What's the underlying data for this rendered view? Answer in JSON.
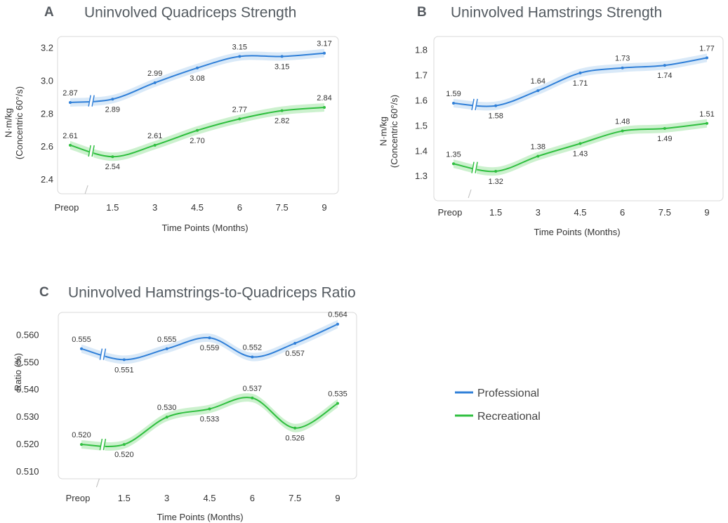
{
  "colors": {
    "professional": "#2f7fd8",
    "recreational": "#2fbf3f",
    "professional_band": "#cfe4f6",
    "recreational_band": "#bfeec2",
    "frame": "#d8d8d8"
  },
  "legend": {
    "items": [
      {
        "label": "Professional"
      },
      {
        "label": "Recreational"
      }
    ],
    "position": "right-middle"
  },
  "chart_data": [
    {
      "id": "A",
      "type": "line",
      "letter": "A",
      "title": "Uninvolved Quadriceps Strength",
      "xlabel": "Time Points (Months)",
      "ylabel": "N·m/kg (Concentric 60°/s)",
      "ylabel_lines": [
        "N·m/kg",
        "(Concentric 60°/s)"
      ],
      "categories": [
        "Preop",
        "1.5",
        "3",
        "4.5",
        "6",
        "7.5",
        "9"
      ],
      "yticks": [
        "2.4",
        "2.6",
        "2.8",
        "3.0",
        "3.2"
      ],
      "ylim": [
        2.4,
        3.22
      ],
      "grid": false,
      "axis_break": true,
      "series": [
        {
          "name": "Professional",
          "values": [
            2.87,
            2.89,
            2.99,
            3.08,
            3.15,
            3.15,
            3.17
          ],
          "labels": [
            "2.87",
            "2.89",
            "2.99",
            "3.08",
            "3.15",
            "3.15",
            "3.17"
          ]
        },
        {
          "name": "Recreational",
          "values": [
            2.61,
            2.54,
            2.61,
            2.7,
            2.77,
            2.82,
            2.84
          ],
          "labels": [
            "2.61",
            "2.54",
            "2.61",
            "2.70",
            "2.77",
            "2.82",
            "2.84"
          ]
        }
      ]
    },
    {
      "id": "B",
      "type": "line",
      "letter": "B",
      "title": "Uninvolved Hamstrings Strength",
      "xlabel": "Time Points (Months)",
      "ylabel": "N·m/kg (Concentric 60°/s)",
      "ylabel_lines": [
        "N·m/kg",
        "(Concentric 60°/s)"
      ],
      "categories": [
        "Preop",
        "1.5",
        "3",
        "4.5",
        "6",
        "7.5",
        "9"
      ],
      "yticks": [
        "1.3",
        "1.4",
        "1.5",
        "1.6",
        "1.7",
        "1.8"
      ],
      "ylim": [
        1.27,
        1.81
      ],
      "grid": false,
      "axis_break": true,
      "series": [
        {
          "name": "Professional",
          "values": [
            1.59,
            1.58,
            1.64,
            1.71,
            1.73,
            1.74,
            1.77
          ],
          "labels": [
            "1.59",
            "1.58",
            "1.64",
            "1.71",
            "1.73",
            "1.74",
            "1.77"
          ]
        },
        {
          "name": "Recreational",
          "values": [
            1.35,
            1.32,
            1.38,
            1.43,
            1.48,
            1.49,
            1.51
          ],
          "labels": [
            "1.35",
            "1.32",
            "1.38",
            "1.43",
            "1.48",
            "1.49",
            "1.51"
          ]
        }
      ]
    },
    {
      "id": "C",
      "type": "line",
      "letter": "C",
      "title": "Uninvolved Hamstrings-to-Quadriceps Ratio",
      "xlabel": "Time Points (Months)",
      "ylabel": "Ratio (%)",
      "ylabel_lines": [
        "Ratio (%)"
      ],
      "categories": [
        "Preop",
        "1.5",
        "3",
        "4.5",
        "6",
        "7.5",
        "9"
      ],
      "yticks": [
        "0.510",
        "0.520",
        "0.530",
        "0.540",
        "0.550",
        "0.560"
      ],
      "ylim": [
        0.5095,
        0.5665
      ],
      "grid": false,
      "axis_break": true,
      "series": [
        {
          "name": "Professional",
          "values": [
            0.555,
            0.551,
            0.555,
            0.559,
            0.552,
            0.557,
            0.564
          ],
          "labels": [
            "0.555",
            "0.551",
            "0.555",
            "0.559",
            "0.552",
            "0.557",
            "0.564"
          ]
        },
        {
          "name": "Recreational",
          "values": [
            0.52,
            0.52,
            0.53,
            0.533,
            0.537,
            0.526,
            0.535
          ],
          "labels": [
            "0.520",
            "0.520",
            "0.530",
            "0.533",
            "0.537",
            "0.526",
            "0.535"
          ]
        }
      ]
    }
  ]
}
